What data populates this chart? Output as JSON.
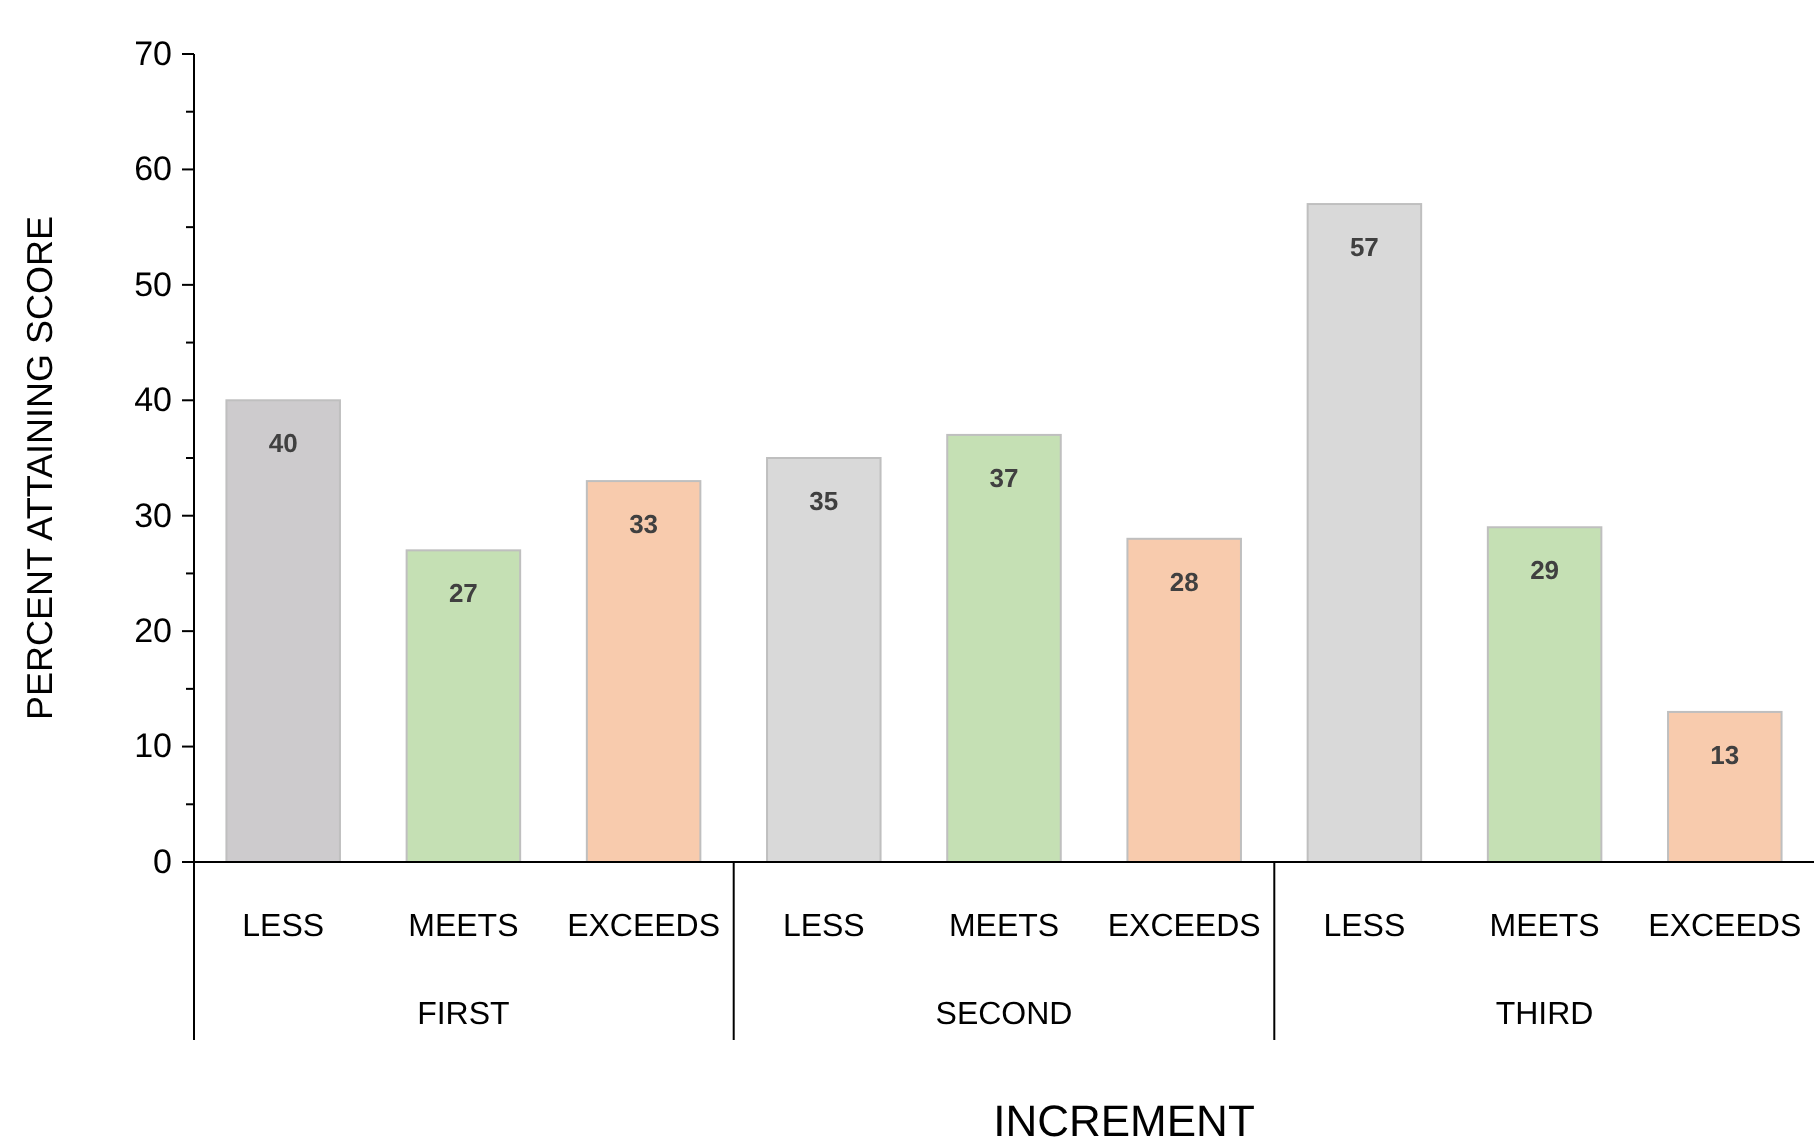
{
  "chart_data": {
    "type": "bar",
    "xlabel": "INCREMENT",
    "ylabel": "PERCENT ATTAINING SCORE",
    "categories": [
      "LESS",
      "MEETS",
      "EXCEEDS",
      "LESS",
      "MEETS",
      "EXCEEDS",
      "LESS",
      "MEETS",
      "EXCEEDS"
    ],
    "values": [
      40,
      27,
      33,
      35,
      37,
      28,
      57,
      29,
      13
    ],
    "colors": [
      "#cdcbcd",
      "#c5e0b4",
      "#f8cbad",
      "#d9d9d9",
      "#c5e0b4",
      "#f8cbad",
      "#d9d9d9",
      "#c5e0b4",
      "#f8cbad"
    ],
    "annotations": [
      "FIRST",
      "SECOND",
      "THIRD"
    ],
    "ylim": [
      0,
      70
    ],
    "yticks": [
      0,
      10,
      20,
      30,
      40,
      50,
      60,
      70
    ],
    "data_labels": true
  }
}
